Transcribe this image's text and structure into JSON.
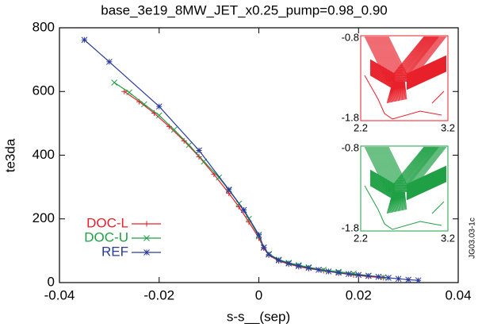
{
  "chart_data": {
    "type": "line",
    "title": "base_3e19_8MW_JET_x0.25_pump=0.98_0.90",
    "x_label": "s-s__(sep)",
    "y_label": "te3da",
    "side_note": "JG03.03-1c",
    "xlim": [
      -0.04,
      0.04
    ],
    "xticks": [
      -0.04,
      -0.02,
      0,
      0.02,
      0.04
    ],
    "ylim": [
      0,
      800
    ],
    "yticks": [
      0,
      200,
      400,
      600,
      800
    ],
    "legend": "lower left",
    "series": [
      {
        "name": "DOC-L",
        "color": "#e8202a",
        "marker": "plus",
        "x": [
          -0.027,
          -0.024,
          -0.021,
          -0.018,
          -0.015,
          -0.012,
          -0.009,
          -0.006,
          -0.004,
          -0.002,
          0,
          0.001,
          0.002,
          0.004,
          0.006,
          0.008,
          0.01,
          0.013,
          0.016,
          0.019,
          0.022,
          0.025
        ],
        "values": [
          600,
          568,
          532,
          490,
          445,
          395,
          340,
          280,
          238,
          190,
          140,
          108,
          86,
          68,
          58,
          50,
          44,
          37,
          30,
          24,
          19,
          15
        ]
      },
      {
        "name": "DOC-U",
        "color": "#1fa045",
        "marker": "x",
        "x": [
          -0.029,
          -0.026,
          -0.023,
          -0.02,
          -0.017,
          -0.014,
          -0.011,
          -0.008,
          -0.006,
          -0.004,
          -0.002,
          0,
          0.001,
          0.002,
          0.004,
          0.006,
          0.008,
          0.01,
          0.013,
          0.016,
          0.019,
          0.022,
          0.025
        ],
        "values": [
          628,
          597,
          560,
          525,
          480,
          432,
          380,
          330,
          290,
          248,
          200,
          145,
          110,
          90,
          72,
          62,
          55,
          48,
          40,
          34,
          28,
          22,
          17
        ]
      },
      {
        "name": "REF",
        "color": "#2a3a9c",
        "marker": "star",
        "x": [
          -0.035,
          -0.03,
          -0.02,
          -0.012,
          -0.006,
          -0.003,
          0,
          0.001,
          0.002,
          0.004,
          0.006,
          0.008,
          0.01,
          0.012,
          0.014,
          0.016,
          0.018,
          0.02,
          0.022,
          0.024,
          0.026,
          0.028,
          0.03,
          0.032
        ],
        "values": [
          762,
          693,
          553,
          415,
          292,
          228,
          150,
          110,
          88,
          70,
          60,
          52,
          46,
          40,
          35,
          31,
          27,
          24,
          21,
          18,
          15,
          12,
          9,
          7
        ]
      }
    ],
    "insets": [
      {
        "color": "#e8202a",
        "xticks": [
          2.2,
          3.2
        ],
        "yticks": [
          -0.8,
          -1.8
        ]
      },
      {
        "color": "#1fa045",
        "xticks": [
          2.2,
          3.2
        ],
        "yticks": [
          -0.8,
          -1.8
        ]
      }
    ]
  }
}
